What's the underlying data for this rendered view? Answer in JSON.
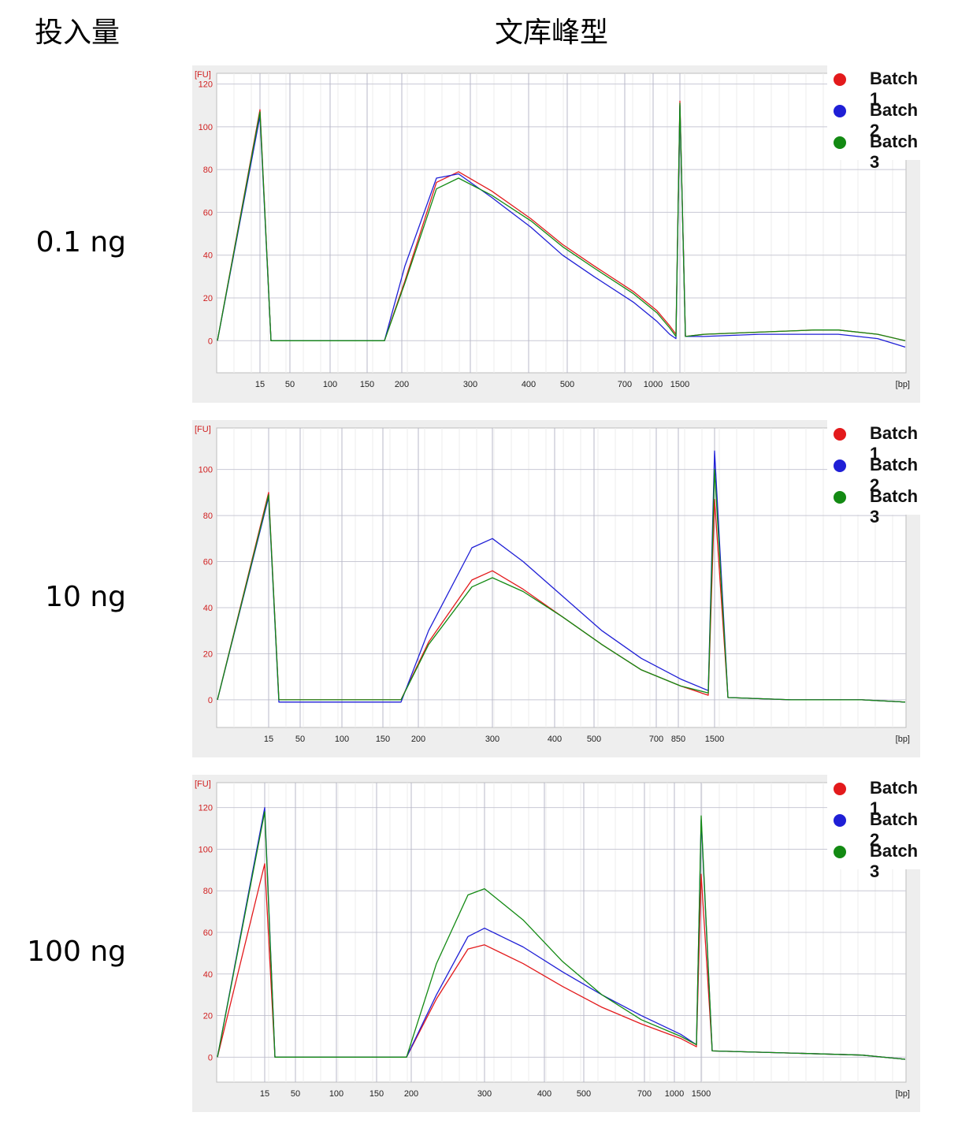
{
  "header": {
    "input_label": "投入量",
    "profile_label": "文库峰型"
  },
  "rows": [
    {
      "label": "0.1 ng"
    },
    {
      "label": "10 ng"
    },
    {
      "label": "100 ng"
    }
  ],
  "legend": [
    {
      "name": "Batch 1",
      "color": "#e31a1c"
    },
    {
      "name": "Batch 2",
      "color": "#1f1fd6"
    },
    {
      "name": "Batch 3",
      "color": "#138a13"
    }
  ],
  "chart_data": [
    {
      "type": "line",
      "title": "0.1 ng",
      "ylabel": "[FU]",
      "xlabel": "[bp]",
      "ylim": [
        -15,
        125
      ],
      "yticks": [
        0,
        20,
        40,
        60,
        80,
        100,
        120
      ],
      "x_tick_labels": [
        "15",
        "50",
        "100",
        "150",
        "200",
        "300",
        "400",
        "500",
        "700",
        "1000",
        "1500"
      ],
      "series": [
        {
          "name": "Batch 1",
          "values": [
            0,
            108,
            0,
            0,
            0,
            0,
            0,
            28,
            74,
            79,
            70,
            57,
            45,
            35,
            23,
            14,
            7,
            3,
            112,
            2,
            3,
            4,
            5,
            5,
            3,
            0
          ]
        },
        {
          "name": "Batch 2",
          "values": [
            0,
            105,
            0,
            0,
            0,
            0,
            0,
            35,
            76,
            78,
            67,
            53,
            40,
            30,
            18,
            9,
            3,
            1,
            110,
            2,
            2,
            3,
            3,
            3,
            1,
            -3
          ]
        },
        {
          "name": "Batch 3",
          "values": [
            0,
            107,
            0,
            0,
            0,
            0,
            0,
            27,
            71,
            76,
            68,
            56,
            44,
            34,
            22,
            13,
            6,
            2,
            111,
            2,
            3,
            4,
            5,
            5,
            3,
            0
          ]
        }
      ]
    },
    {
      "type": "line",
      "title": "10 ng",
      "ylabel": "[FU]",
      "xlabel": "[bp]",
      "ylim": [
        -12,
        118
      ],
      "yticks": [
        0,
        20,
        40,
        60,
        80,
        100
      ],
      "x_tick_labels": [
        "15",
        "50",
        "100",
        "150",
        "200",
        "300",
        "400",
        "500",
        "700",
        "850",
        "1500"
      ],
      "series": [
        {
          "name": "Batch 1",
          "values": [
            0,
            90,
            0,
            0,
            0,
            0,
            0,
            25,
            52,
            56,
            48,
            36,
            24,
            13,
            6,
            2,
            87,
            1,
            0,
            0,
            -1
          ]
        },
        {
          "name": "Batch 2",
          "values": [
            0,
            88,
            -1,
            -1,
            -1,
            -1,
            -1,
            30,
            66,
            70,
            60,
            45,
            30,
            18,
            9,
            4,
            108,
            1,
            0,
            0,
            -1
          ]
        },
        {
          "name": "Batch 3",
          "values": [
            0,
            89,
            0,
            0,
            0,
            0,
            0,
            24,
            49,
            53,
            47,
            36,
            24,
            13,
            6,
            3,
            100,
            1,
            0,
            0,
            -1
          ]
        }
      ]
    },
    {
      "type": "line",
      "title": "100 ng",
      "ylabel": "[FU]",
      "xlabel": "[bp]",
      "ylim": [
        -12,
        132
      ],
      "yticks": [
        0,
        20,
        40,
        60,
        80,
        100,
        120
      ],
      "x_tick_labels": [
        "15",
        "50",
        "100",
        "150",
        "200",
        "300",
        "400",
        "500",
        "700",
        "1000",
        "1500"
      ],
      "series": [
        {
          "name": "Batch 1",
          "values": [
            0,
            93,
            0,
            0,
            0,
            0,
            0,
            28,
            52,
            54,
            45,
            34,
            24,
            16,
            9,
            5,
            88,
            3,
            2,
            1,
            -1
          ]
        },
        {
          "name": "Batch 2",
          "values": [
            0,
            120,
            0,
            0,
            0,
            0,
            0,
            30,
            58,
            62,
            53,
            41,
            30,
            20,
            11,
            6,
            114,
            3,
            2,
            1,
            -1
          ]
        },
        {
          "name": "Batch 3",
          "values": [
            0,
            118,
            0,
            0,
            0,
            0,
            0,
            45,
            78,
            81,
            66,
            46,
            30,
            18,
            10,
            6,
            116,
            3,
            2,
            1,
            -1
          ]
        }
      ]
    }
  ]
}
